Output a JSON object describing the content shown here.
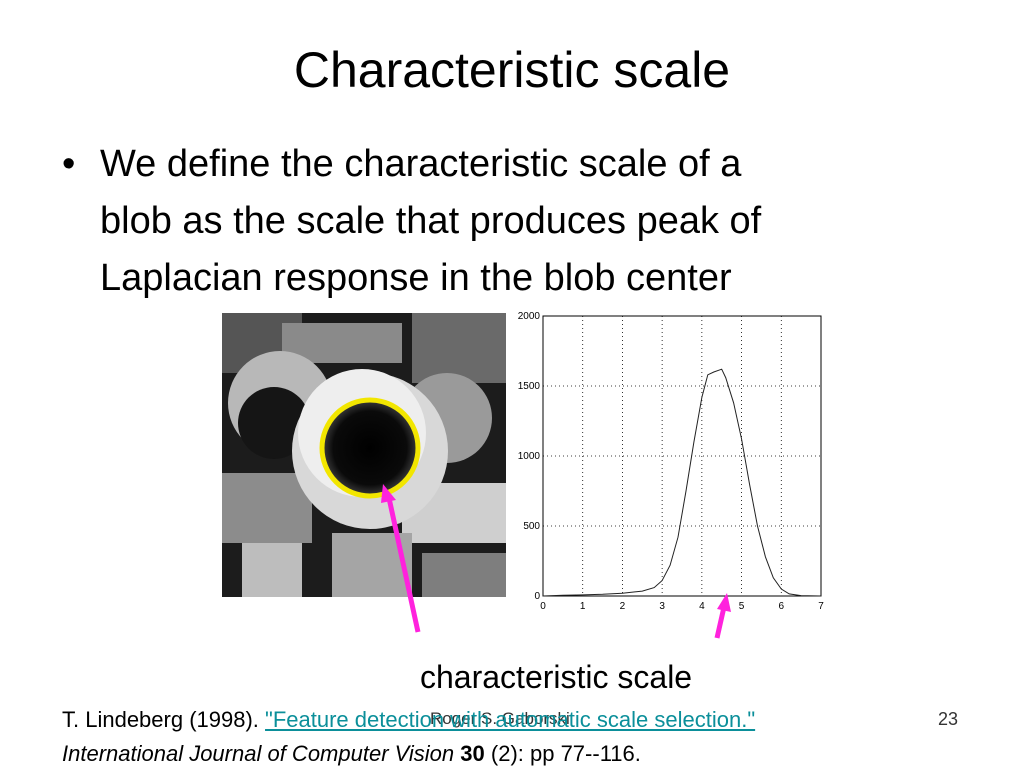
{
  "title": "Characteristic scale",
  "bullet": {
    "lines": [
      "We define the characteristic scale of a",
      "blob as the scale that produces peak of",
      "Laplacian response in the blob center"
    ]
  },
  "photo_caption": "",
  "chart_data": {
    "type": "line",
    "x": [
      0,
      0.5,
      1,
      1.5,
      2,
      2.5,
      2.8,
      3,
      3.2,
      3.4,
      3.6,
      3.8,
      4,
      4.15,
      4.3,
      4.5,
      4.6,
      4.8,
      5,
      5.2,
      5.4,
      5.6,
      5.8,
      6,
      6.2,
      6.5,
      7
    ],
    "values": [
      0,
      5,
      8,
      12,
      20,
      35,
      60,
      110,
      220,
      420,
      750,
      1100,
      1420,
      1580,
      1600,
      1620,
      1560,
      1380,
      1120,
      800,
      500,
      280,
      130,
      50,
      15,
      3,
      0
    ],
    "xlim": [
      0,
      7
    ],
    "ylim": [
      0,
      2000
    ],
    "xticks": [
      "0",
      "1",
      "2",
      "3",
      "4",
      "5",
      "6",
      "7"
    ],
    "yticks": [
      "0",
      "500",
      "1000",
      "1500",
      "2000"
    ],
    "grid": true,
    "title": "",
    "xlabel": "",
    "ylabel": ""
  },
  "annotation": {
    "label": "characteristic scale",
    "arrow_color": "#ff22dd",
    "circle_color": "#f2e600"
  },
  "reference": {
    "prefix": "T. Lindeberg (1998). ",
    "link_text": "\"Feature detection with automatic scale selection.\"",
    "journal": "International Journal of Computer Vision",
    "volume": "30",
    "tail": " (2): pp 77--116."
  },
  "footer": {
    "author": "Roger S. Gaborski",
    "slide_number": "23"
  }
}
